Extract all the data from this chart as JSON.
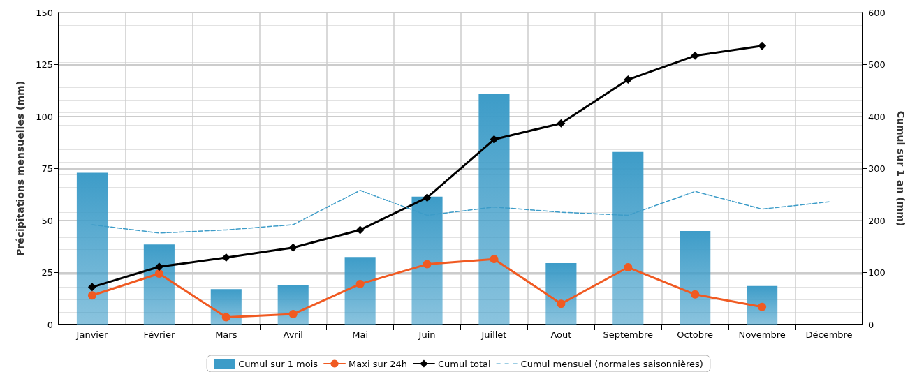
{
  "chart_data": {
    "type": "bar",
    "ylabel": "Précipitations mensuelles (mm)",
    "y2label": "Cumul sur 1 an (mm)",
    "categories": [
      "Janvier",
      "Février",
      "Mars",
      "Avril",
      "Mai",
      "Juin",
      "Juillet",
      "Aout",
      "Septembre",
      "Octobre",
      "Novembre",
      "Décembre"
    ],
    "series": [
      {
        "name": "Cumul sur 1 mois",
        "type": "bar",
        "color": "#3d9cc8",
        "values": [
          73,
          38.5,
          17,
          19,
          32.5,
          61.5,
          111,
          29.5,
          83,
          45,
          18.5,
          null
        ]
      },
      {
        "name": "Maxi sur 24h",
        "type": "line",
        "color": "#f05a22",
        "marker": "circle",
        "line_style": "solid",
        "values": [
          14,
          24.5,
          3.5,
          5,
          19.5,
          29,
          31.5,
          10,
          27.5,
          14.5,
          8.5,
          null
        ]
      },
      {
        "name": "Cumul total",
        "type": "line",
        "axis": "y2",
        "color": "#000000",
        "marker": "diamond",
        "line_style": "solid",
        "values": [
          72,
          111,
          129,
          148,
          182,
          244,
          356,
          387,
          471,
          517,
          536,
          null
        ]
      },
      {
        "name": "Cumul mensuel (normales saisonnières)",
        "type": "line",
        "color": "#3d9cc8",
        "marker": "none",
        "line_style": "dashed",
        "values": [
          48,
          44,
          45.5,
          48,
          64.5,
          52.5,
          56.5,
          54,
          52.5,
          64,
          55.5,
          59
        ]
      }
    ],
    "ylim": [
      0,
      150
    ],
    "yticks": [
      0,
      25,
      50,
      75,
      100,
      125,
      150
    ],
    "y2lim": [
      0,
      600
    ],
    "y2ticks": [
      0,
      100,
      200,
      300,
      400,
      500,
      600
    ],
    "grid": true,
    "legend": "bottom"
  }
}
